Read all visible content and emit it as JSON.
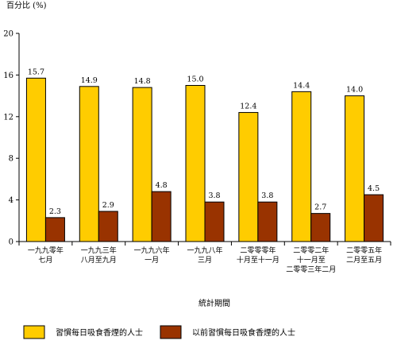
{
  "chart_data": {
    "type": "bar",
    "ylabel": "百分比 (%)",
    "xlabel": "統計期間",
    "ylim": [
      0,
      20
    ],
    "yticks": [
      0,
      4,
      8,
      12,
      16,
      20
    ],
    "grid": false,
    "legend_position": "bottom",
    "categories": [
      [
        "一九九零年",
        "七月"
      ],
      [
        "一九九三年",
        "八月至九月"
      ],
      [
        "一九九六年",
        "一月"
      ],
      [
        "一九九八年",
        "三月"
      ],
      [
        "二零零零年",
        "十月至十一月"
      ],
      [
        "二零零二年",
        "十一月至",
        "二零零三年二月"
      ],
      [
        "二零零五年",
        "二月至五月"
      ]
    ],
    "series": [
      {
        "name": "習慣每日吸食香煙的人士",
        "color": "#FFCC00",
        "values": [
          15.7,
          14.9,
          14.8,
          15.0,
          12.4,
          14.4,
          14.0
        ],
        "labels": [
          "15.7",
          "14.9",
          "14.8",
          "15.0",
          "12.4",
          "14.4",
          "14.0"
        ]
      },
      {
        "name": "以前習慣每日吸食香煙的人士",
        "color": "#993300",
        "values": [
          2.3,
          2.9,
          4.8,
          3.8,
          3.8,
          2.7,
          4.5
        ],
        "labels": [
          "2.3",
          "2.9",
          "4.8",
          "3.8",
          "3.8",
          "2.7",
          "4.5"
        ]
      }
    ]
  }
}
